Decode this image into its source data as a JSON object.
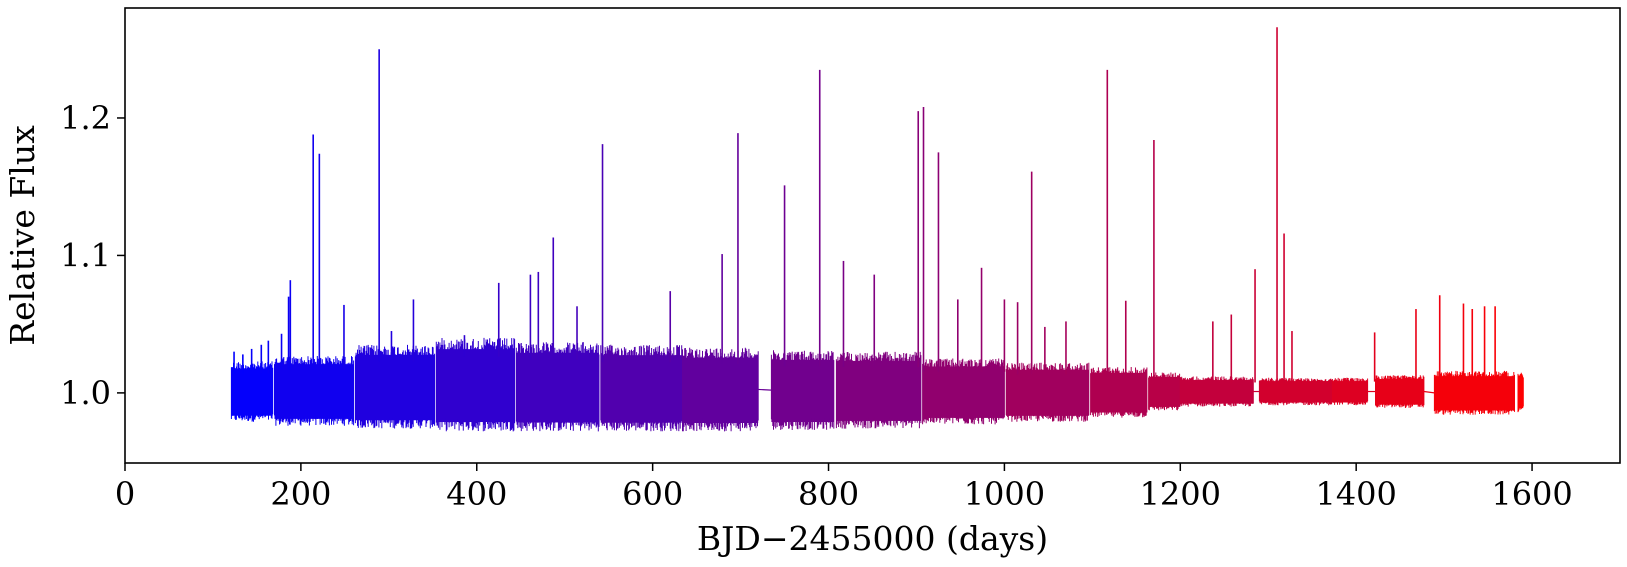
{
  "chart_data": {
    "type": "line",
    "title": "",
    "xlabel": "BJD−2455000 (days)",
    "ylabel": "Relative Flux",
    "xlim": [
      0,
      1700
    ],
    "ylim": [
      0.949,
      1.28
    ],
    "xticks": [
      0,
      200,
      400,
      600,
      800,
      1000,
      1200,
      1400,
      1600
    ],
    "yticks": [
      1.0,
      1.1,
      1.2
    ],
    "ytick_labels": [
      "1.0",
      "1.1",
      "1.2"
    ],
    "grid": false,
    "legend": "none",
    "color_gradient": {
      "start": "#0000ff",
      "end": "#ff0000",
      "by": "time"
    },
    "series": [
      {
        "segments": [
          {
            "x0": 121,
            "x1": 168,
            "ymin": 0.979,
            "ymax": 1.023
          },
          {
            "x0": 170,
            "x1": 260,
            "ymin": 0.976,
            "ymax": 1.027
          },
          {
            "x0": 262,
            "x1": 352,
            "ymin": 0.974,
            "ymax": 1.035
          },
          {
            "x0": 354,
            "x1": 443,
            "ymin": 0.972,
            "ymax": 1.04
          },
          {
            "x0": 445,
            "x1": 539,
            "ymin": 0.972,
            "ymax": 1.037
          },
          {
            "x0": 541,
            "x1": 633,
            "ymin": 0.972,
            "ymax": 1.035
          },
          {
            "x0": 634,
            "x1": 720,
            "ymin": 0.972,
            "ymax": 1.033
          },
          {
            "x0": 735,
            "x1": 806,
            "ymin": 0.973,
            "ymax": 1.031
          },
          {
            "x0": 809,
            "x1": 905,
            "ymin": 0.974,
            "ymax": 1.03
          },
          {
            "x0": 907,
            "x1": 1000,
            "ymin": 0.977,
            "ymax": 1.025
          },
          {
            "x0": 1002,
            "x1": 1096,
            "ymin": 0.979,
            "ymax": 1.022
          },
          {
            "x0": 1098,
            "x1": 1162,
            "ymin": 0.982,
            "ymax": 1.019
          },
          {
            "x0": 1164,
            "x1": 1200,
            "ymin": 0.987,
            "ymax": 1.015
          },
          {
            "x0": 1200,
            "x1": 1283,
            "ymin": 0.99,
            "ymax": 1.012
          },
          {
            "x0": 1290,
            "x1": 1372,
            "ymin": 0.991,
            "ymax": 1.011
          },
          {
            "x0": 1373,
            "x1": 1413,
            "ymin": 0.991,
            "ymax": 1.011
          },
          {
            "x0": 1422,
            "x1": 1477,
            "ymin": 0.989,
            "ymax": 1.013
          },
          {
            "x0": 1489,
            "x1": 1580,
            "ymin": 0.984,
            "ymax": 1.016
          },
          {
            "x0": 1584,
            "x1": 1590,
            "ymin": 0.986,
            "ymax": 1.015
          }
        ],
        "flares": [
          {
            "x": 124,
            "y": 1.03
          },
          {
            "x": 134,
            "y": 1.028
          },
          {
            "x": 144,
            "y": 1.032
          },
          {
            "x": 155,
            "y": 1.035
          },
          {
            "x": 163,
            "y": 1.038
          },
          {
            "x": 178,
            "y": 1.043
          },
          {
            "x": 186,
            "y": 1.07
          },
          {
            "x": 188,
            "y": 1.082
          },
          {
            "x": 214,
            "y": 1.188
          },
          {
            "x": 221,
            "y": 1.174
          },
          {
            "x": 249,
            "y": 1.064
          },
          {
            "x": 289,
            "y": 1.25
          },
          {
            "x": 303,
            "y": 1.045
          },
          {
            "x": 328,
            "y": 1.068
          },
          {
            "x": 386,
            "y": 1.042
          },
          {
            "x": 425,
            "y": 1.08
          },
          {
            "x": 461,
            "y": 1.086
          },
          {
            "x": 470,
            "y": 1.088
          },
          {
            "x": 487,
            "y": 1.113
          },
          {
            "x": 514,
            "y": 1.063
          },
          {
            "x": 543,
            "y": 1.181
          },
          {
            "x": 620,
            "y": 1.074
          },
          {
            "x": 679,
            "y": 1.101
          },
          {
            "x": 697,
            "y": 1.189
          },
          {
            "x": 750,
            "y": 1.151
          },
          {
            "x": 790,
            "y": 1.235
          },
          {
            "x": 817,
            "y": 1.096
          },
          {
            "x": 852,
            "y": 1.086
          },
          {
            "x": 902,
            "y": 1.205
          },
          {
            "x": 908,
            "y": 1.208
          },
          {
            "x": 925,
            "y": 1.175
          },
          {
            "x": 947,
            "y": 1.068
          },
          {
            "x": 974,
            "y": 1.091
          },
          {
            "x": 1000,
            "y": 1.068
          },
          {
            "x": 1015,
            "y": 1.066
          },
          {
            "x": 1031,
            "y": 1.161
          },
          {
            "x": 1046,
            "y": 1.048
          },
          {
            "x": 1070,
            "y": 1.052
          },
          {
            "x": 1117,
            "y": 1.235
          },
          {
            "x": 1138,
            "y": 1.067
          },
          {
            "x": 1170,
            "y": 1.184
          },
          {
            "x": 1237,
            "y": 1.052
          },
          {
            "x": 1258,
            "y": 1.057
          },
          {
            "x": 1285,
            "y": 1.09
          },
          {
            "x": 1310,
            "y": 1.266
          },
          {
            "x": 1318,
            "y": 1.116
          },
          {
            "x": 1327,
            "y": 1.045
          },
          {
            "x": 1421,
            "y": 1.044
          },
          {
            "x": 1468,
            "y": 1.061
          },
          {
            "x": 1495,
            "y": 1.071
          },
          {
            "x": 1522,
            "y": 1.065
          },
          {
            "x": 1532,
            "y": 1.061
          },
          {
            "x": 1546,
            "y": 1.063
          },
          {
            "x": 1558,
            "y": 1.063
          }
        ]
      }
    ]
  }
}
